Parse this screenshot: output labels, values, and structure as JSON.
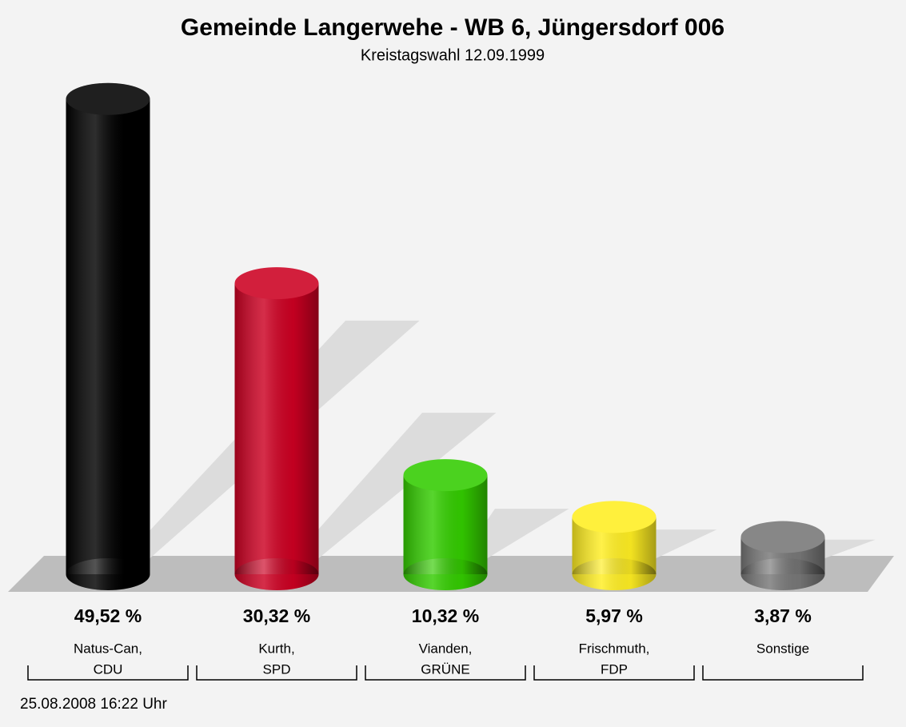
{
  "chart_data": {
    "type": "bar",
    "title": "Gemeinde Langerwehe - WB 6, Jüngersdorf 006",
    "subtitle": "Kreistagswahl 12.09.1999",
    "categories": [
      [
        "Natus-Can,",
        "CDU"
      ],
      [
        "Kurth,",
        "SPD"
      ],
      [
        "Vianden,",
        "GRÜNE"
      ],
      [
        "Frischmuth,",
        "FDP"
      ],
      [
        "Sonstige"
      ]
    ],
    "values": [
      49.52,
      30.32,
      10.32,
      5.97,
      3.87
    ],
    "value_labels": [
      "49,52 %",
      "30,32 %",
      "10,32 %",
      "5,97 %",
      "3,87 %"
    ],
    "colors": [
      "#000000",
      "#cc0022",
      "#33cc00",
      "#ffee22",
      "#777777"
    ],
    "footnote": "25.08.2008 16:22 Uhr"
  }
}
